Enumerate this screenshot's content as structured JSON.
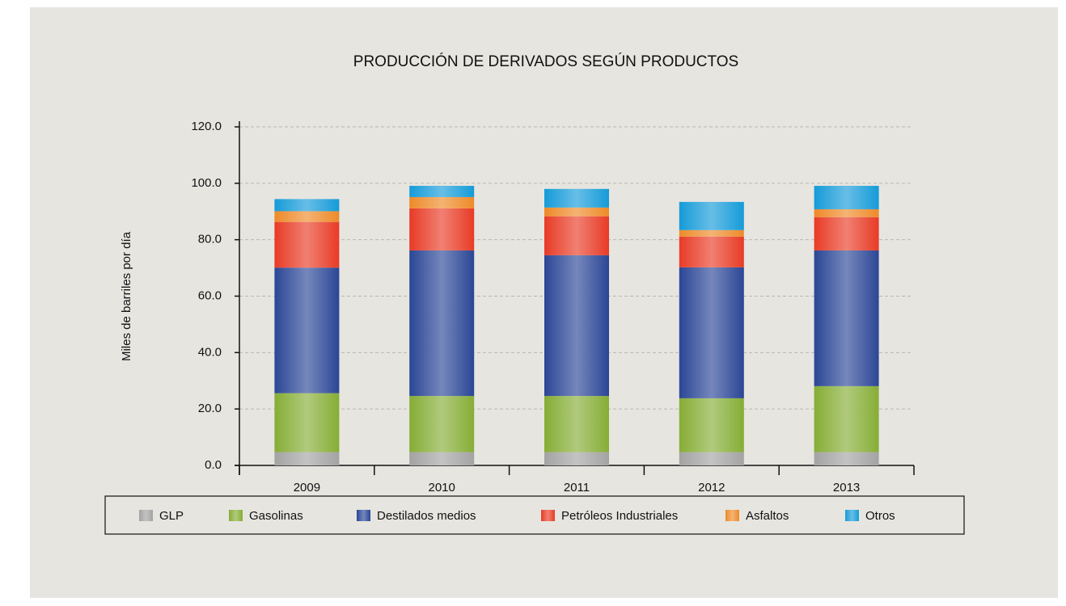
{
  "chart_data": {
    "type": "stacked_bar",
    "title": "PRODUCCIÓN DE DERIVADOS SEGÚN PRODUCTOS",
    "y_label": "Miles de barriles por día",
    "categories": [
      "2009",
      "2010",
      "2011",
      "2012",
      "2013"
    ],
    "series": [
      {
        "name": "GLP",
        "color": "#a3a3a3",
        "values": [
          4.7,
          4.7,
          4.7,
          4.7,
          4.7
        ]
      },
      {
        "name": "Gasolinas",
        "color": "#86ad35",
        "values": [
          20.9,
          19.9,
          19.9,
          19.1,
          23.4
        ]
      },
      {
        "name": "Destilados medios",
        "color": "#2b4696",
        "values": [
          44.5,
          51.6,
          49.9,
          46.4,
          48.1
        ]
      },
      {
        "name": "Petróleos Industriales",
        "color": "#e83b26",
        "values": [
          16.2,
          14.9,
          13.8,
          10.9,
          11.8
        ]
      },
      {
        "name": "Asfaltos",
        "color": "#ee8a28",
        "values": [
          3.8,
          4.0,
          3.1,
          2.3,
          2.8
        ]
      },
      {
        "name": "Otros",
        "color": "#159bd8",
        "values": [
          4.3,
          4.0,
          6.6,
          10.0,
          8.3
        ]
      }
    ],
    "ylim": [
      0,
      120
    ],
    "yticks": [
      {
        "value": 0,
        "label": "0.0"
      },
      {
        "value": 20,
        "label": "20.0"
      },
      {
        "value": 40,
        "label": "40.0"
      },
      {
        "value": 60,
        "label": "60.0"
      },
      {
        "value": 80,
        "label": "80.0"
      },
      {
        "value": 100,
        "label": "100.0"
      },
      {
        "value": 120,
        "label": "120.0"
      }
    ],
    "grid": true,
    "legend": "bottom"
  }
}
